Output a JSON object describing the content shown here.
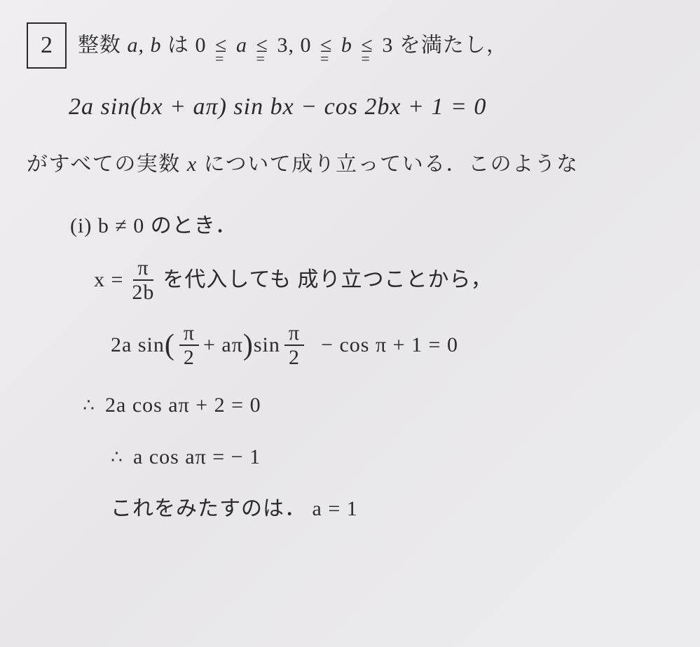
{
  "problem": {
    "number": "2",
    "stem_prefix": "整数 ",
    "var_a": "a",
    "comma": ", ",
    "var_b": "b",
    "stem_mid1": " は ",
    "ineq1_l": "0",
    "ineq1_m": "a",
    "ineq1_r": "3",
    "sep": ",  ",
    "ineq2_l": "0",
    "ineq2_m": "b",
    "ineq2_r": "3",
    "stem_tail": " を満たし，"
  },
  "equation_printed": "2a sin(bx + aπ) sin bx − cos 2bx + 1 = 0",
  "line2_prefix": "がすべての実数 ",
  "line2_var": "x",
  "line2_tail": " について成り立っている．このような",
  "hand": {
    "case_label": "(i)  b ≠ 0 のとき．",
    "sub_pre": "x = ",
    "frac1_num": "π",
    "frac1_den": "2b",
    "sub_post": " を代入しても 成り立つことから，",
    "eq1_pre": "2a sin ",
    "eq1_frac_num": "π",
    "eq1_frac_den": "2",
    "eq1_mid": " + aπ",
    "eq1_after_paren": " sin ",
    "eq1_frac2_num": "π",
    "eq1_frac2_den": "2",
    "eq1_tail": " − cos π + 1 = 0",
    "therefore1": "2a cos aπ + 2 = 0",
    "therefore2": "a cos aπ = − 1",
    "conclusion": "これをみたすのは．  a = 1"
  },
  "style": {
    "bg_tint": "#ececef",
    "ink": "#2a2a2c",
    "box_border": "#2a2a2c"
  }
}
